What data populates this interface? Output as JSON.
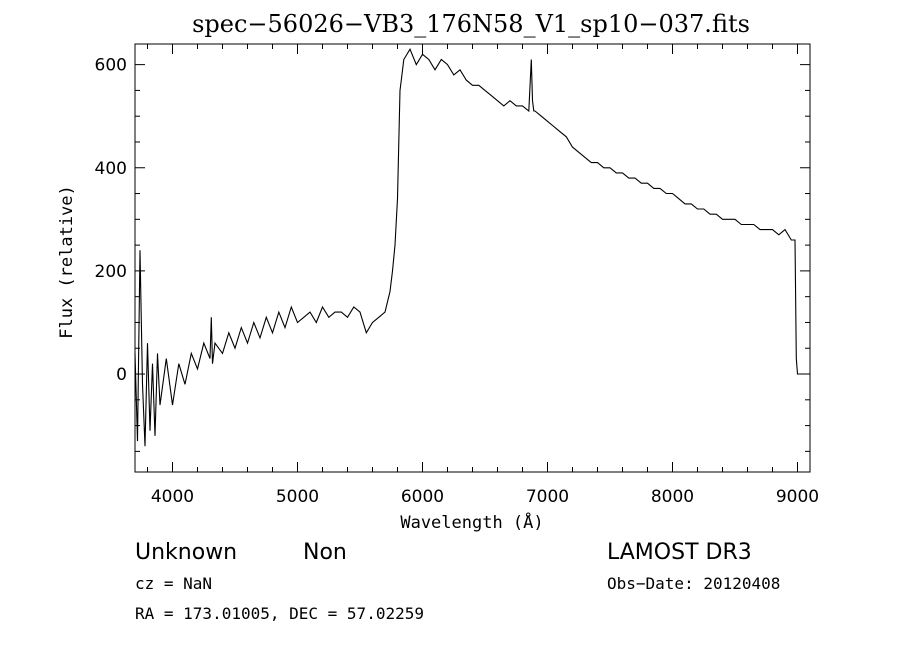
{
  "chart_data": {
    "type": "line",
    "title": "spec−56026−VB3_176N58_V1_sp10−037.fits",
    "xlabel": "Wavelength (Å)",
    "ylabel": "Flux (relative)",
    "xlim": [
      3700,
      9100
    ],
    "ylim": [
      -190,
      640
    ],
    "x_ticks": [
      4000,
      5000,
      6000,
      7000,
      8000,
      9000
    ],
    "x_tick_labels": [
      "4000",
      "5000",
      "6000",
      "7000",
      "8000",
      "9000"
    ],
    "y_ticks": [
      0,
      200,
      400,
      600
    ],
    "y_tick_labels": [
      "0",
      "200",
      "400",
      "600"
    ],
    "grid": false,
    "series": [
      {
        "x": [
          3700,
          3720,
          3740,
          3760,
          3780,
          3800,
          3820,
          3840,
          3860,
          3880,
          3900,
          3950,
          4000,
          4050,
          4100,
          4150,
          4200,
          4250,
          4300,
          4310,
          4320,
          4340,
          4400,
          4450,
          4500,
          4550,
          4600,
          4650,
          4700,
          4750,
          4800,
          4850,
          4900,
          4950,
          5000,
          5050,
          5100,
          5150,
          5200,
          5250,
          5300,
          5350,
          5400,
          5450,
          5500,
          5550,
          5600,
          5650,
          5700,
          5740,
          5760,
          5780,
          5800,
          5810,
          5820,
          5830,
          5850,
          5900,
          5950,
          6000,
          6050,
          6100,
          6150,
          6200,
          6250,
          6300,
          6350,
          6400,
          6450,
          6500,
          6550,
          6600,
          6650,
          6700,
          6750,
          6800,
          6850,
          6870,
          6880,
          6890,
          6900,
          6950,
          7000,
          7050,
          7100,
          7150,
          7200,
          7250,
          7300,
          7350,
          7400,
          7450,
          7500,
          7550,
          7600,
          7650,
          7700,
          7750,
          7800,
          7850,
          7900,
          7950,
          8000,
          8050,
          8100,
          8150,
          8200,
          8250,
          8300,
          8350,
          8400,
          8450,
          8500,
          8550,
          8600,
          8650,
          8700,
          8750,
          8800,
          8850,
          8900,
          8950,
          8980,
          8990,
          9000,
          9010,
          9100
        ],
        "y": [
          40,
          -130,
          240,
          -20,
          -140,
          60,
          -110,
          20,
          -120,
          40,
          -60,
          30,
          -60,
          20,
          -20,
          40,
          10,
          60,
          30,
          110,
          20,
          60,
          40,
          80,
          50,
          90,
          60,
          100,
          70,
          110,
          80,
          120,
          90,
          130,
          100,
          110,
          120,
          100,
          130,
          110,
          120,
          120,
          110,
          130,
          120,
          80,
          100,
          110,
          120,
          160,
          200,
          250,
          340,
          450,
          550,
          570,
          610,
          630,
          600,
          620,
          610,
          590,
          610,
          600,
          580,
          590,
          570,
          560,
          560,
          550,
          540,
          530,
          520,
          530,
          520,
          520,
          510,
          610,
          530,
          510,
          510,
          500,
          490,
          480,
          470,
          460,
          440,
          430,
          420,
          410,
          410,
          400,
          400,
          390,
          390,
          380,
          380,
          370,
          370,
          360,
          360,
          350,
          350,
          340,
          330,
          330,
          320,
          320,
          310,
          310,
          300,
          300,
          300,
          290,
          290,
          290,
          280,
          280,
          280,
          270,
          280,
          260,
          260,
          30,
          0,
          0,
          0
        ]
      }
    ]
  },
  "annotations": {
    "class_label": "Unknown",
    "subclass_label": "Non",
    "survey_label": "LAMOST DR3",
    "cz_text": "cz = NaN",
    "obs_date_text": "Obs−Date: 20120408",
    "coords_text": "RA = 173.01005, DEC =  57.02259"
  }
}
